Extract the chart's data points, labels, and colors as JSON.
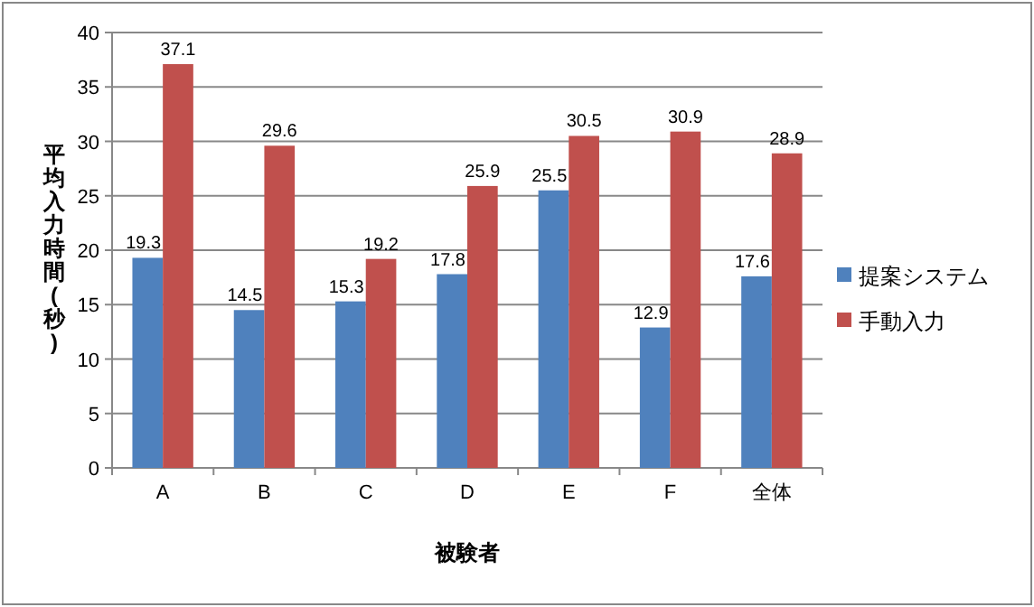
{
  "chart_data": {
    "type": "bar",
    "xlabel": "被験者",
    "ylabel": "平均入力時間(秒)",
    "categories": [
      "A",
      "B",
      "C",
      "D",
      "E",
      "F",
      "全体"
    ],
    "series": [
      {
        "name": "提案システム",
        "color": "#4f81bd",
        "values": [
          19.3,
          14.5,
          15.3,
          17.8,
          25.5,
          12.9,
          17.6
        ]
      },
      {
        "name": "手動入力",
        "color": "#c0504d",
        "values": [
          37.1,
          29.6,
          19.2,
          25.9,
          30.5,
          30.9,
          28.9
        ]
      }
    ],
    "ylim": [
      0,
      40
    ],
    "yticks": [
      0,
      5,
      10,
      15,
      20,
      25,
      30,
      35,
      40
    ],
    "grid": "y",
    "legend": "right",
    "data_labels": true
  }
}
